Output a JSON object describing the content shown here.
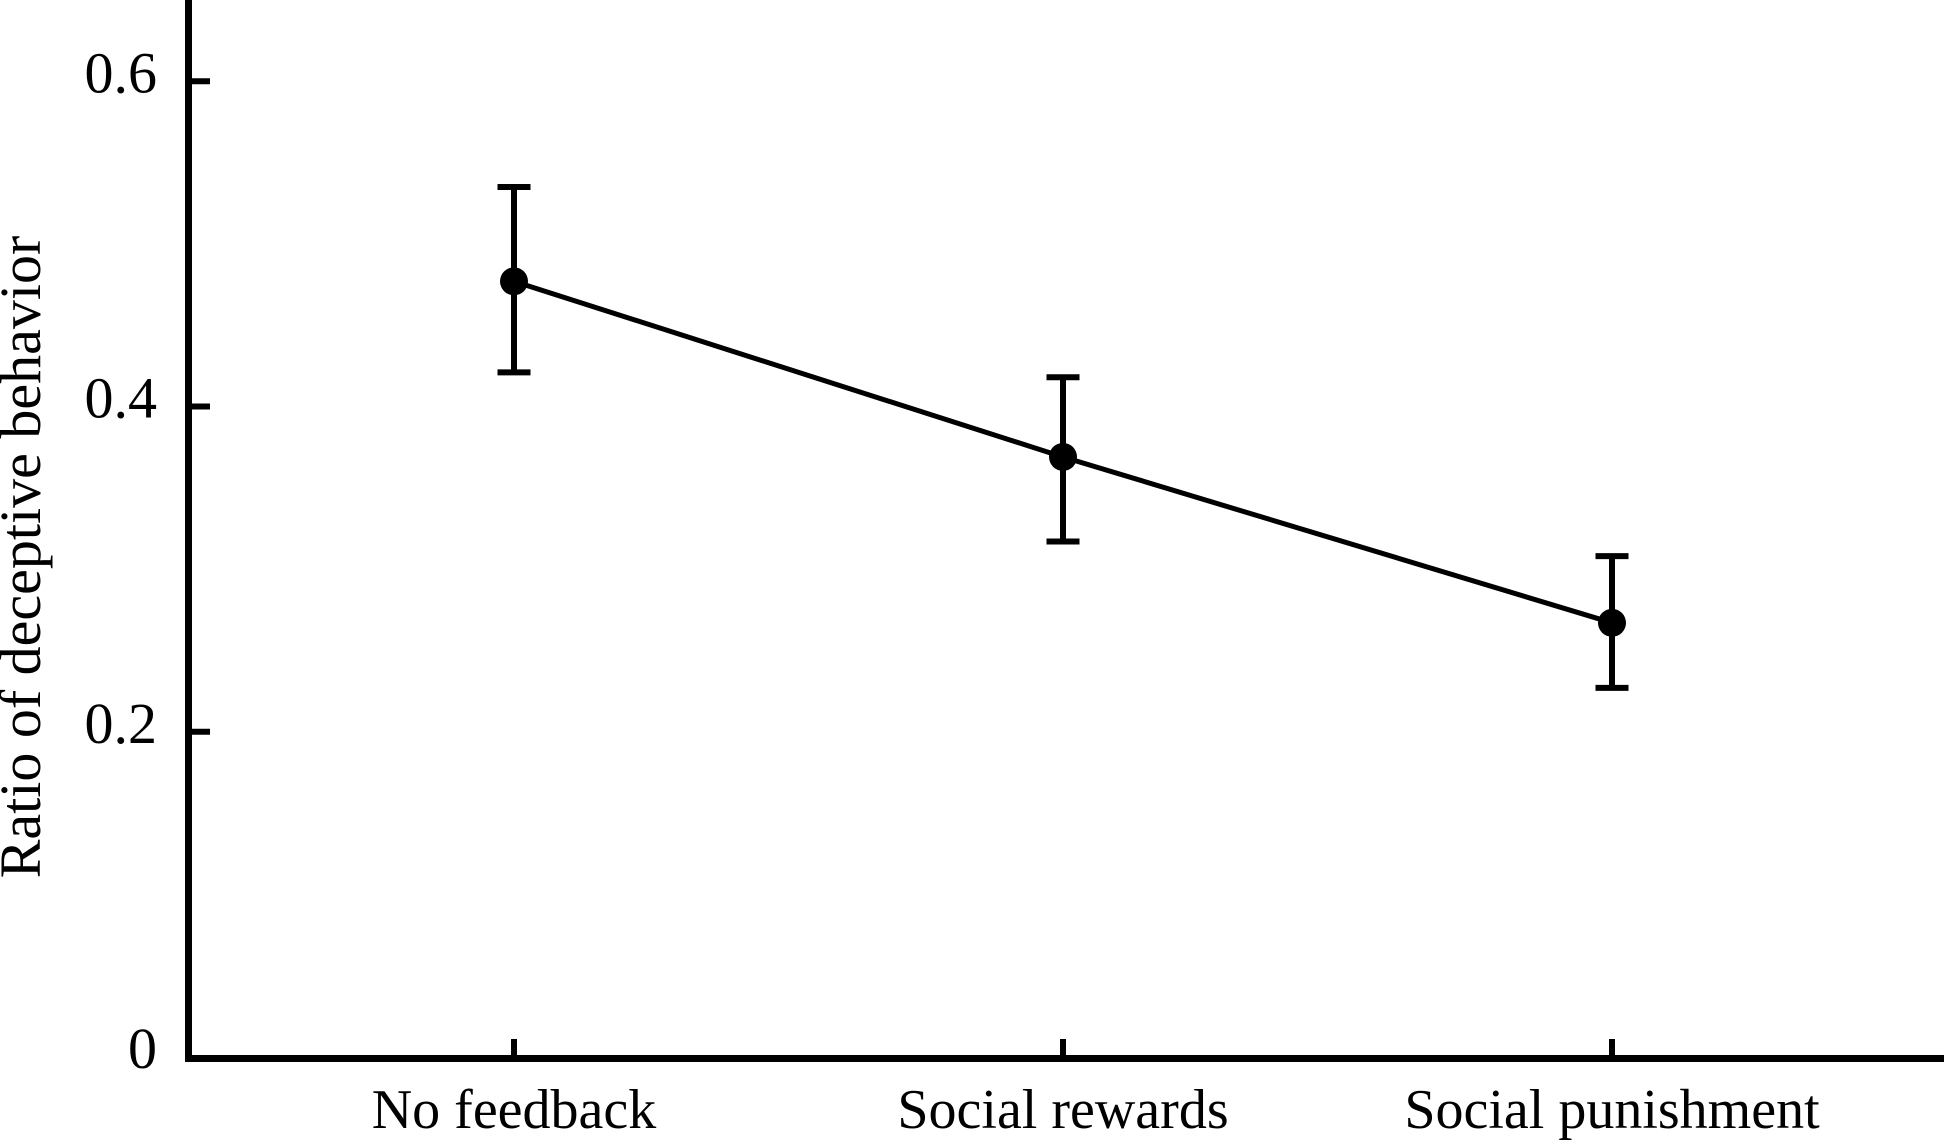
{
  "figure": {
    "background_color": "#ffffff",
    "ink_color": "#000000"
  },
  "chart_data": {
    "type": "line",
    "title": "",
    "xlabel": "",
    "ylabel": "Ratio of deceptive behavior",
    "categories": [
      "No feedback",
      "Social rewards",
      "Social punishment"
    ],
    "series": [
      {
        "name": "Ratio of deceptive behavior",
        "values": [
          0.477,
          0.369,
          0.267
        ],
        "error_upper": [
          0.535,
          0.418,
          0.308
        ],
        "error_lower": [
          0.421,
          0.317,
          0.227
        ]
      }
    ],
    "yticks": [
      0,
      0.2,
      0.4,
      0.6
    ],
    "ytick_labels": [
      "0",
      "0.2",
      "0.4",
      "0.6"
    ],
    "ylim": [
      0,
      0.65
    ],
    "grid": false,
    "legend": false,
    "marker": "filled-circle",
    "error_bars": true,
    "line_color": "#000000",
    "marker_color": "#000000"
  }
}
